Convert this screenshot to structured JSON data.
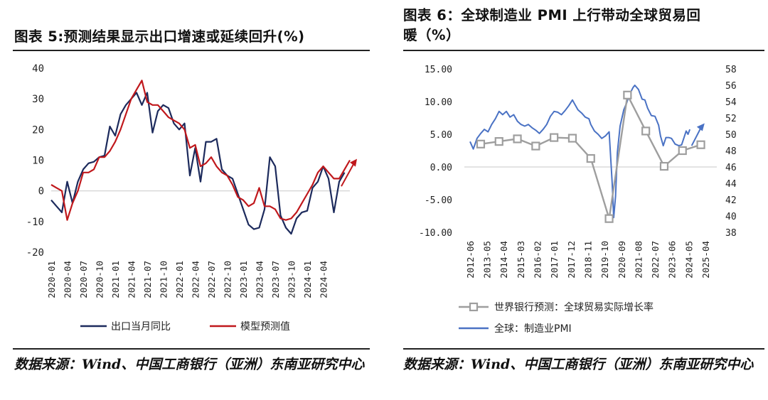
{
  "left": {
    "title": "图表 5:预测结果显示出口增速或延续回升(%)",
    "source": "数据来源：Wind、中国工商银行（亚洲）东南亚研究中心",
    "chart_data": {
      "type": "line",
      "title": "图表 5:预测结果显示出口增速或延续回升(%)",
      "ylim": [
        -20,
        40
      ],
      "yticks": [
        40,
        30,
        20,
        10,
        0,
        -10,
        -20
      ],
      "xtick_labels": [
        "2020-01",
        "2020-04",
        "2020-07",
        "2020-10",
        "2021-01",
        "2021-04",
        "2021-07",
        "2021-10",
        "2022-01",
        "2022-04",
        "2022-07",
        "2022-10",
        "2023-01",
        "2023-04",
        "2023-07",
        "2023-10",
        "2024-01",
        "2024-04"
      ],
      "series": [
        {
          "name": "出口当月同比",
          "color": "#1c2a5c",
          "points": [
            [
              0,
              -3
            ],
            [
              1,
              -5
            ],
            [
              2,
              -7
            ],
            [
              3,
              3
            ],
            [
              4,
              -4
            ],
            [
              5,
              3
            ],
            [
              6,
              7
            ],
            [
              7,
              9
            ],
            [
              8,
              9.5
            ],
            [
              9,
              11
            ],
            [
              10,
              11.5
            ],
            [
              11,
              21
            ],
            [
              12,
              18
            ],
            [
              13,
              25
            ],
            [
              14,
              28
            ],
            [
              15,
              30
            ],
            [
              16,
              32
            ],
            [
              17,
              28
            ],
            [
              18,
              32
            ],
            [
              19,
              19
            ],
            [
              20,
              26
            ],
            [
              21,
              28
            ],
            [
              22,
              27
            ],
            [
              23,
              22
            ],
            [
              24,
              20
            ],
            [
              25,
              22
            ],
            [
              26,
              5
            ],
            [
              27,
              14
            ],
            [
              28,
              3
            ],
            [
              29,
              16
            ],
            [
              30,
              16
            ],
            [
              31,
              17
            ],
            [
              32,
              7
            ],
            [
              33,
              5
            ],
            [
              34,
              4
            ],
            [
              35,
              -1
            ],
            [
              36,
              -6
            ],
            [
              37,
              -11
            ],
            [
              38,
              -12.5
            ],
            [
              39,
              -12
            ],
            [
              40,
              -6
            ],
            [
              41,
              11
            ],
            [
              42,
              8
            ],
            [
              43,
              -8
            ],
            [
              44,
              -12
            ],
            [
              45,
              -14
            ],
            [
              46,
              -9
            ],
            [
              47,
              -7
            ],
            [
              48,
              -6.5
            ],
            [
              49,
              1
            ],
            [
              50,
              3
            ],
            [
              51,
              8
            ],
            [
              52,
              4
            ],
            [
              53,
              -7
            ],
            [
              54,
              3
            ],
            [
              55,
              6
            ]
          ]
        },
        {
          "name": "模型预测值",
          "color": "#c0181c",
          "points": [
            [
              0,
              2
            ],
            [
              1,
              1
            ],
            [
              2,
              0
            ],
            [
              3,
              -9.5
            ],
            [
              4,
              -4
            ],
            [
              5,
              0
            ],
            [
              6,
              6
            ],
            [
              7,
              6
            ],
            [
              8,
              7
            ],
            [
              9,
              11
            ],
            [
              10,
              11
            ],
            [
              11,
              13
            ],
            [
              12,
              16
            ],
            [
              13,
              20
            ],
            [
              14,
              25
            ],
            [
              15,
              30
            ],
            [
              16,
              33
            ],
            [
              17,
              36
            ],
            [
              18,
              29
            ],
            [
              19,
              28
            ],
            [
              20,
              28
            ],
            [
              21,
              26
            ],
            [
              22,
              24
            ],
            [
              23,
              23
            ],
            [
              24,
              22
            ],
            [
              25,
              20
            ],
            [
              26,
              14
            ],
            [
              27,
              15
            ],
            [
              28,
              8
            ],
            [
              29,
              9
            ],
            [
              30,
              11
            ],
            [
              31,
              8
            ],
            [
              32,
              6
            ],
            [
              33,
              5
            ],
            [
              34,
              2
            ],
            [
              35,
              -2
            ],
            [
              36,
              -3
            ],
            [
              37,
              -5
            ],
            [
              38,
              -4
            ],
            [
              39,
              1
            ],
            [
              40,
              -5
            ],
            [
              41,
              -5
            ],
            [
              42,
              -6
            ],
            [
              43,
              -9
            ],
            [
              44,
              -9.5
            ],
            [
              45,
              -9
            ],
            [
              46,
              -7
            ],
            [
              47,
              -4
            ],
            [
              48,
              -1
            ],
            [
              49,
              2
            ],
            [
              50,
              6
            ],
            [
              51,
              8
            ],
            [
              52,
              6
            ],
            [
              53,
              4
            ],
            [
              54,
              4
            ],
            [
              55,
              7
            ],
            [
              56,
              10
            ]
          ]
        }
      ],
      "annotation": "red-upward-arrow",
      "legend_position": "bottom"
    }
  },
  "right": {
    "title_line1": "图表 6：全球制造业 PMI 上行带动全球贸易回",
    "title_line2": "暖（%）",
    "source": "数据来源：Wind、中国工商银行（亚洲）东南亚研究中心",
    "chart_data": {
      "type": "line",
      "dual_axis": true,
      "left_ylim": [
        -10,
        15
      ],
      "left_yticks": [
        "15.00",
        "10.00",
        "5.00",
        "0.00",
        "-5.00",
        "-10.00"
      ],
      "right_ylim": [
        38,
        58
      ],
      "right_yticks": [
        58,
        56,
        54,
        52,
        50,
        48,
        46,
        44,
        42,
        40,
        38
      ],
      "xtick_labels": [
        "2012-06",
        "2013-05",
        "2014-04",
        "2015-03",
        "2016-02",
        "2017-01",
        "2017-12",
        "2018-11",
        "2019-10",
        "2020-09",
        "2021-08",
        "2022-07",
        "2023-06",
        "2024-05",
        "2025-04"
      ],
      "series": [
        {
          "name": "世界银行预测：全球贸易实际增长率",
          "color": "#9e9e9e",
          "axis": "left",
          "marker": "square",
          "points": [
            [
              2013,
              3.5
            ],
            [
              2014,
              3.9
            ],
            [
              2015,
              4.3
            ],
            [
              2016,
              3.2
            ],
            [
              2017,
              4.5
            ],
            [
              2018,
              4.4
            ],
            [
              2019,
              1.3
            ],
            [
              2020,
              -7.9
            ],
            [
              2021,
              11
            ],
            [
              2022,
              5.5
            ],
            [
              2023,
              0.1
            ],
            [
              2024,
              2.5
            ],
            [
              2025,
              3.4
            ]
          ]
        },
        {
          "name": "全球：制造业PMI",
          "color": "#4a72c4",
          "axis": "right",
          "points": [
            [
              2012.42,
              49.1
            ],
            [
              2012.6,
              48.2
            ],
            [
              2012.8,
              49.5
            ],
            [
              2013.0,
              50.1
            ],
            [
              2013.2,
              50.6
            ],
            [
              2013.4,
              50.3
            ],
            [
              2013.6,
              51.2
            ],
            [
              2013.8,
              51.9
            ],
            [
              2014.0,
              52.8
            ],
            [
              2014.2,
              52.4
            ],
            [
              2014.4,
              52.8
            ],
            [
              2014.6,
              52.1
            ],
            [
              2014.8,
              52.4
            ],
            [
              2015.0,
              51.6
            ],
            [
              2015.2,
              51.2
            ],
            [
              2015.4,
              51.0
            ],
            [
              2015.6,
              51.2
            ],
            [
              2015.8,
              50.8
            ],
            [
              2016.0,
              50.5
            ],
            [
              2016.2,
              50.1
            ],
            [
              2016.4,
              50.6
            ],
            [
              2016.6,
              51.2
            ],
            [
              2016.8,
              52.2
            ],
            [
              2017.0,
              52.8
            ],
            [
              2017.2,
              52.7
            ],
            [
              2017.4,
              52.4
            ],
            [
              2017.6,
              52.9
            ],
            [
              2017.8,
              53.5
            ],
            [
              2018.0,
              54.2
            ],
            [
              2018.1,
              53.8
            ],
            [
              2018.3,
              53.0
            ],
            [
              2018.5,
              52.6
            ],
            [
              2018.7,
              52.1
            ],
            [
              2018.9,
              51.9
            ],
            [
              2019.0,
              51.2
            ],
            [
              2019.2,
              50.4
            ],
            [
              2019.4,
              50.0
            ],
            [
              2019.6,
              49.5
            ],
            [
              2019.8,
              49.8
            ],
            [
              2020.0,
              50.3
            ],
            [
              2020.08,
              47.4
            ],
            [
              2020.17,
              44.0
            ],
            [
              2020.25,
              39.8
            ],
            [
              2020.35,
              42.4
            ],
            [
              2020.45,
              47.8
            ],
            [
              2020.6,
              51.0
            ],
            [
              2020.8,
              53.0
            ],
            [
              2020.95,
              53.8
            ],
            [
              2021.1,
              54.8
            ],
            [
              2021.3,
              55.7
            ],
            [
              2021.4,
              56.0
            ],
            [
              2021.6,
              55.5
            ],
            [
              2021.8,
              54.3
            ],
            [
              2021.95,
              54.2
            ],
            [
              2022.1,
              53.2
            ],
            [
              2022.3,
              52.3
            ],
            [
              2022.5,
              52.2
            ],
            [
              2022.7,
              51.1
            ],
            [
              2022.8,
              49.8
            ],
            [
              2022.95,
              48.6
            ],
            [
              2023.1,
              49.6
            ],
            [
              2023.25,
              49.6
            ],
            [
              2023.4,
              49.5
            ],
            [
              2023.6,
              48.8
            ],
            [
              2023.8,
              48.6
            ],
            [
              2023.95,
              48.7
            ],
            [
              2024.1,
              49.7
            ],
            [
              2024.2,
              50.4
            ],
            [
              2024.3,
              50.0
            ],
            [
              2024.4,
              50.6
            ]
          ]
        }
      ],
      "annotation": "blue-upward-arrow",
      "legend_position": "bottom-left"
    }
  }
}
